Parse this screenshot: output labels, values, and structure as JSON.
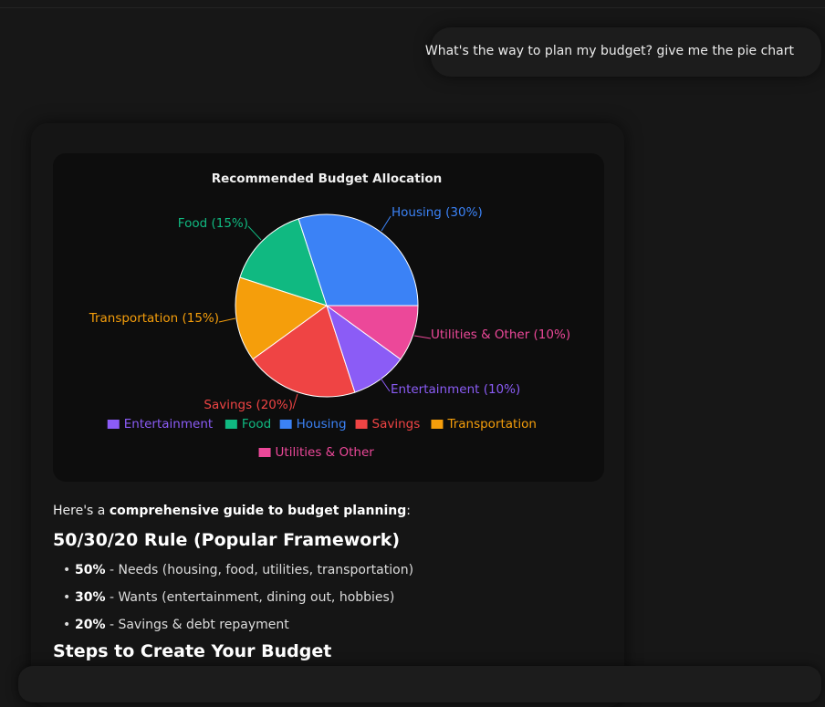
{
  "user_message": "What's the way to plan my budget? give me the pie chart",
  "chart_data": {
    "type": "pie",
    "title": "Recommended Budget Allocation",
    "slices": [
      {
        "name": "Housing",
        "value": 30,
        "label": "Housing (30%)",
        "color": "#3b82f6"
      },
      {
        "name": "Utilities & Other",
        "value": 10,
        "label": "Utilities & Other (10%)",
        "color": "#ec4899"
      },
      {
        "name": "Entertainment",
        "value": 10,
        "label": "Entertainment (10%)",
        "color": "#8b5cf6"
      },
      {
        "name": "Savings",
        "value": 20,
        "label": "Savings (20%)",
        "color": "#ef4444"
      },
      {
        "name": "Transportation",
        "value": 15,
        "label": "Transportation (15%)",
        "color": "#f59e0b"
      },
      {
        "name": "Food",
        "value": 15,
        "label": "Food (15%)",
        "color": "#10b981"
      }
    ],
    "legend": [
      {
        "name": "Entertainment",
        "color": "#8b5cf6"
      },
      {
        "name": "Food",
        "color": "#10b981"
      },
      {
        "name": "Housing",
        "color": "#3b82f6"
      },
      {
        "name": "Savings",
        "color": "#ef4444"
      },
      {
        "name": "Transportation",
        "color": "#f59e0b"
      },
      {
        "name": "Utilities & Other",
        "color": "#ec4899"
      }
    ],
    "legend_position": "bottom"
  },
  "response": {
    "intro_prefix": "Here's a ",
    "intro_bold": "comprehensive guide to budget planning",
    "intro_suffix": ":",
    "heading1": "50/30/20 Rule (Popular Framework)",
    "rules": [
      {
        "pct": "50%",
        "text": " - Needs (housing, food, utilities, transportation)"
      },
      {
        "pct": "30%",
        "text": " - Wants (entertainment, dining out, hobbies)"
      },
      {
        "pct": "20%",
        "text": " - Savings & debt repayment"
      }
    ],
    "heading2": "Steps to Create Your Budget"
  }
}
